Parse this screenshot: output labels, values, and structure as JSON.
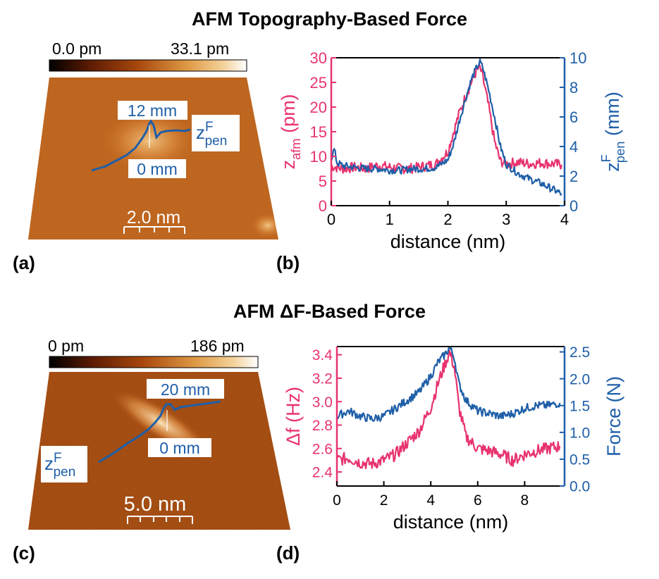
{
  "titles": {
    "top": "AFM Topography-Based Force",
    "bottom": "AFM ΔF-Based Force"
  },
  "panel_labels": {
    "a": "(a)",
    "b": "(b)",
    "c": "(c)",
    "d": "(d)"
  },
  "colors": {
    "pink": "#e8336e",
    "blue": "#1f5fa8",
    "afm_dark": "#7a2a05",
    "afm_mid": "#c8651e",
    "afm_bright": "#f6d8a8"
  },
  "panel_a": {
    "colorbar_min": "0.0 pm",
    "colorbar_max": "33.1 pm",
    "line_top_label": "12 mm",
    "line_bottom_label": "0 mm",
    "zpen_main": "z",
    "zpen_sup": "F",
    "zpen_sub": "pen",
    "scalebar": "2.0 nm"
  },
  "panel_c": {
    "colorbar_min": "0 pm",
    "colorbar_max": "186 pm",
    "line_top_label": "20 mm",
    "line_bottom_label": "0 mm",
    "zpen_main": "z",
    "zpen_sup": "F",
    "zpen_sub": "pen",
    "scalebar": "5.0 nm"
  },
  "chart_data": [
    {
      "type": "line",
      "panel": "b",
      "xlabel": "distance (nm)",
      "ylabel_left": {
        "main": "z",
        "sub": "afm",
        "unit": "(pm)"
      },
      "ylabel_right": {
        "main": "z",
        "sup": "F",
        "sub": "pen",
        "unit": "(mm)"
      },
      "xlim": [
        0,
        4
      ],
      "ylim_left": [
        0,
        30
      ],
      "ylim_right": [
        0,
        10
      ],
      "xticks": [
        "0",
        "1",
        "2",
        "3",
        "4"
      ],
      "yticks_left": [
        "0",
        "5",
        "10",
        "15",
        "20",
        "25",
        "30"
      ],
      "yticks_right": [
        "0",
        "2",
        "4",
        "6",
        "8",
        "10"
      ],
      "series": [
        {
          "axis": "left",
          "color": "#e8336e",
          "x": [
            0,
            0.2,
            0.4,
            0.6,
            0.8,
            1.0,
            1.2,
            1.4,
            1.6,
            1.8,
            2.0,
            2.1,
            2.2,
            2.3,
            2.4,
            2.5,
            2.55,
            2.6,
            2.7,
            2.8,
            2.9,
            3.0,
            3.2,
            3.4,
            3.6,
            3.8,
            3.95
          ],
          "y": [
            8,
            7.5,
            7.8,
            7.5,
            8.2,
            7.8,
            7.5,
            7.6,
            8,
            8.5,
            11,
            15,
            19,
            22,
            25,
            27.5,
            28,
            26,
            20,
            13,
            9,
            8.5,
            8.8,
            8.5,
            8.7,
            8.5,
            8.3
          ]
        },
        {
          "axis": "right",
          "color": "#1f5fa8",
          "x": [
            0,
            0.05,
            0.1,
            0.2,
            0.4,
            0.6,
            0.8,
            1.0,
            1.2,
            1.4,
            1.6,
            1.8,
            2.0,
            2.1,
            2.2,
            2.3,
            2.4,
            2.5,
            2.55,
            2.6,
            2.7,
            2.8,
            2.9,
            3.0,
            3.2,
            3.4,
            3.6,
            3.8,
            3.95
          ],
          "y": [
            3.2,
            3.8,
            2.9,
            2.7,
            2.6,
            2.5,
            2.5,
            2.4,
            2.4,
            2.5,
            2.5,
            2.6,
            3.1,
            4.2,
            5.8,
            7.2,
            8.5,
            9.4,
            9.7,
            9.3,
            7.8,
            6.0,
            4.0,
            2.8,
            2.2,
            1.8,
            1.5,
            1.1,
            0.8
          ]
        }
      ]
    },
    {
      "type": "line",
      "panel": "d",
      "xlabel": "distance (nm)",
      "ylabel_left": "Δf (Hz)",
      "ylabel_right": "Force (N)",
      "xlim": [
        0,
        9.7
      ],
      "ylim_left": [
        2.28,
        3.47
      ],
      "ylim_right": [
        0,
        2.6
      ],
      "xticks": [
        "0",
        "2",
        "4",
        "6",
        "8"
      ],
      "yticks_left": [
        "2.4",
        "2.6",
        "2.8",
        "3.0",
        "3.2",
        "3.4"
      ],
      "yticks_right": [
        "0.0",
        "0.5",
        "1.0",
        "1.5",
        "2.0",
        "2.5"
      ],
      "series": [
        {
          "axis": "left",
          "color": "#e8336e",
          "x": [
            0,
            0.5,
            1.0,
            1.5,
            2.0,
            2.5,
            3.0,
            3.5,
            4.0,
            4.3,
            4.6,
            4.8,
            5.0,
            5.2,
            5.5,
            6.0,
            6.5,
            7.0,
            7.5,
            8.0,
            8.5,
            9.0,
            9.5
          ],
          "y": [
            2.5,
            2.52,
            2.48,
            2.47,
            2.5,
            2.55,
            2.65,
            2.75,
            2.95,
            3.15,
            3.32,
            3.42,
            3.3,
            2.95,
            2.7,
            2.6,
            2.58,
            2.55,
            2.5,
            2.55,
            2.58,
            2.6,
            2.62
          ]
        },
        {
          "axis": "right",
          "color": "#1f5fa8",
          "x": [
            0,
            0.5,
            1.0,
            1.5,
            2.0,
            2.5,
            3.0,
            3.5,
            4.0,
            4.3,
            4.6,
            4.8,
            5.0,
            5.2,
            5.5,
            6.0,
            6.5,
            7.0,
            7.5,
            8.0,
            8.5,
            9.0,
            9.5
          ],
          "y": [
            1.3,
            1.4,
            1.3,
            1.25,
            1.3,
            1.45,
            1.6,
            1.75,
            2.05,
            2.3,
            2.45,
            2.58,
            2.4,
            1.9,
            1.6,
            1.4,
            1.35,
            1.3,
            1.35,
            1.45,
            1.5,
            1.5,
            1.55
          ]
        }
      ]
    }
  ]
}
